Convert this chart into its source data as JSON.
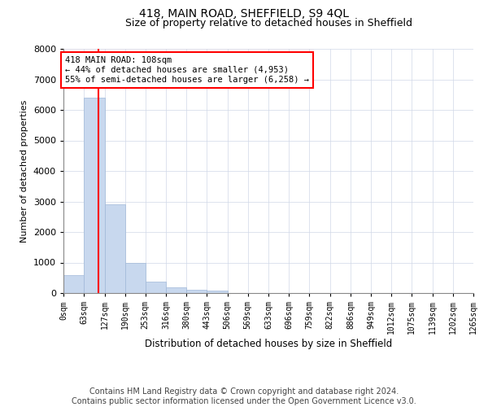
{
  "title": "418, MAIN ROAD, SHEFFIELD, S9 4QL",
  "subtitle": "Size of property relative to detached houses in Sheffield",
  "xlabel": "Distribution of detached houses by size in Sheffield",
  "ylabel": "Number of detached properties",
  "footer_line1": "Contains HM Land Registry data © Crown copyright and database right 2024.",
  "footer_line2": "Contains public sector information licensed under the Open Government Licence v3.0.",
  "bar_values": [
    575,
    6400,
    2920,
    975,
    370,
    175,
    110,
    90,
    0,
    0,
    0,
    0,
    0,
    0,
    0,
    0,
    0,
    0,
    0,
    0
  ],
  "bin_edges": [
    0,
    63,
    127,
    190,
    253,
    316,
    380,
    443,
    506,
    569,
    633,
    696,
    759,
    822,
    886,
    949,
    1012,
    1075,
    1139,
    1202,
    1265
  ],
  "bar_color": "#c8d8ee",
  "bar_edgecolor": "#a0b8d8",
  "grid_color": "#d0d8e8",
  "vline_x": 108,
  "vline_color": "red",
  "annotation_text": "418 MAIN ROAD: 108sqm\n← 44% of detached houses are smaller (4,953)\n55% of semi-detached houses are larger (6,258) →",
  "annotation_boxcolor": "white",
  "annotation_edgecolor": "red",
  "ylim": [
    0,
    8000
  ],
  "yticks": [
    0,
    1000,
    2000,
    3000,
    4000,
    5000,
    6000,
    7000,
    8000
  ],
  "tick_labels": [
    "0sqm",
    "63sqm",
    "127sqm",
    "190sqm",
    "253sqm",
    "316sqm",
    "380sqm",
    "443sqm",
    "506sqm",
    "569sqm",
    "633sqm",
    "696sqm",
    "759sqm",
    "822sqm",
    "886sqm",
    "949sqm",
    "1012sqm",
    "1075sqm",
    "1139sqm",
    "1202sqm",
    "1265sqm"
  ],
  "background_color": "#ffffff",
  "title_fontsize": 10,
  "subtitle_fontsize": 9,
  "ylabel_fontsize": 8,
  "xlabel_fontsize": 8.5,
  "tick_fontsize": 7,
  "ytick_fontsize": 8,
  "footer_fontsize": 7,
  "annotation_fontsize": 7.5
}
